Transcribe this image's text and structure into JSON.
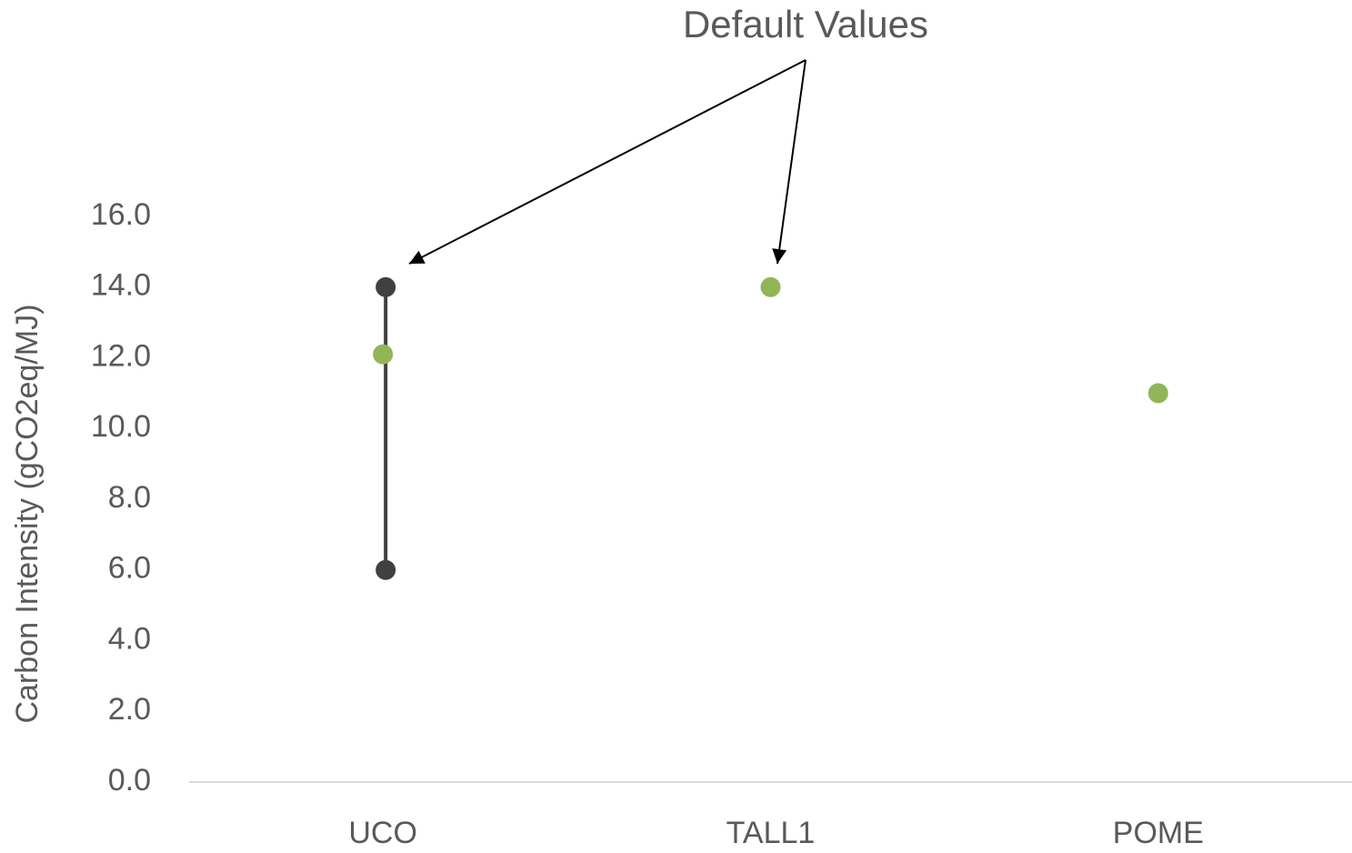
{
  "chart_data": {
    "type": "dot-range",
    "annotation": "Default Values",
    "y_label": "Carbon Intensity (gCO2eq/MJ)",
    "categories": [
      "UCO",
      "TALL1",
      "POME"
    ],
    "series": [
      {
        "color": "#404040",
        "values": [
          14.0,
          null,
          null
        ]
      },
      {
        "color": "#404040",
        "values": [
          6.0,
          null,
          null
        ]
      },
      {
        "color": "#92b558",
        "values": [
          12.1,
          14.0,
          11.0
        ]
      }
    ],
    "ylim": [
      0,
      16
    ],
    "yticks": [
      {
        "value": 0,
        "label": "0.0"
      },
      {
        "value": 2,
        "label": "2.0"
      },
      {
        "value": 4,
        "label": "4.0"
      },
      {
        "value": 6,
        "label": "6.0"
      },
      {
        "value": 8,
        "label": "8.0"
      },
      {
        "value": 10,
        "label": "10.0"
      },
      {
        "value": 12,
        "label": "12.0"
      },
      {
        "value": 14,
        "label": "14.0"
      },
      {
        "value": 16,
        "label": "16.0"
      }
    ],
    "grid": false
  }
}
